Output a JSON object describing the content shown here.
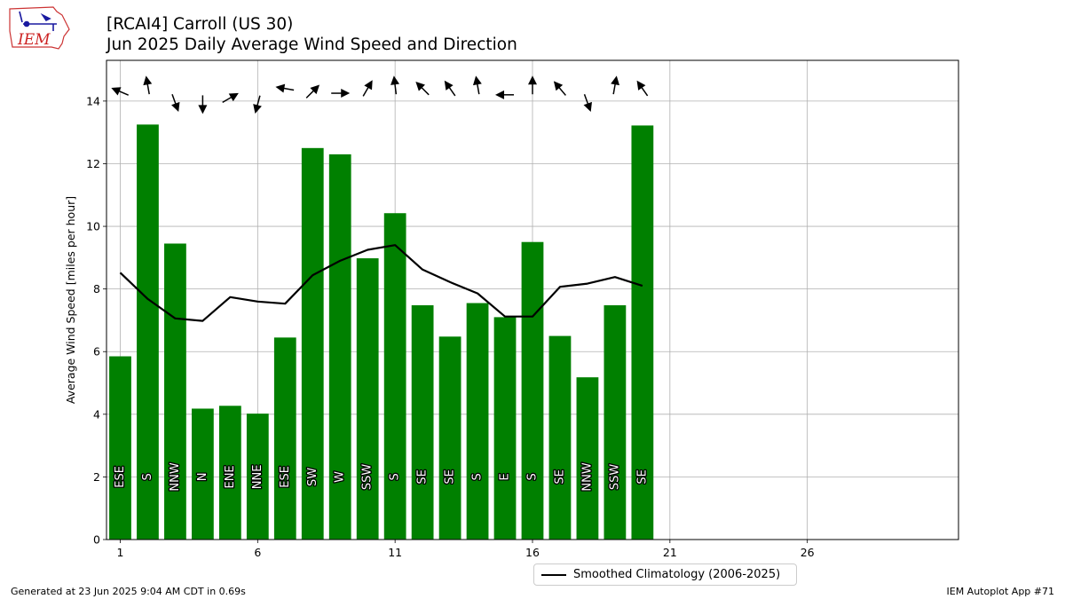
{
  "header": {
    "logo_text": "IEM",
    "title_line1": "[RCAI4] Carroll (US 30)",
    "title_line2": "Jun 2025 Daily Average Wind Speed and Direction"
  },
  "chart_data": {
    "type": "bar",
    "ylabel": "Average Wind Speed [miles per hour]",
    "xlim": [
      0.5,
      31.5
    ],
    "ylim": [
      0,
      15.3
    ],
    "x_ticks": [
      1,
      6,
      11,
      16,
      21,
      26
    ],
    "y_ticks": [
      0,
      2,
      4,
      6,
      8,
      10,
      12,
      14
    ],
    "grid": true,
    "bar_color": "#008000",
    "days": [
      1,
      2,
      3,
      4,
      5,
      6,
      7,
      8,
      9,
      10,
      11,
      12,
      13,
      14,
      15,
      16,
      17,
      18,
      19,
      20
    ],
    "speed": [
      5.85,
      13.25,
      9.45,
      4.18,
      4.27,
      4.02,
      6.45,
      12.5,
      12.3,
      8.98,
      10.42,
      7.48,
      6.48,
      7.55,
      7.1,
      9.5,
      6.5,
      5.18,
      7.48,
      13.22
    ],
    "direction": [
      "ESE",
      "S",
      "NNW",
      "N",
      "ENE",
      "NNE",
      "ESE",
      "SW",
      "W",
      "SSW",
      "S",
      "SE",
      "SE",
      "S",
      "E",
      "S",
      "SE",
      "NNW",
      "SSW",
      "SE"
    ],
    "arrow_y": [
      14.3,
      14.5,
      13.95,
      13.9,
      14.1,
      13.9,
      14.4,
      14.3,
      14.25,
      14.4,
      14.5,
      14.4,
      14.4,
      14.5,
      14.2,
      14.5,
      14.4,
      13.95,
      14.5,
      14.4
    ],
    "arrow_angle_deg": [
      -157,
      -100,
      70,
      90,
      -30,
      105,
      -170,
      -45,
      0,
      -60,
      -97,
      -135,
      -125,
      -100,
      180,
      -90,
      -130,
      70,
      -80,
      -125
    ],
    "series": [
      {
        "name": "Smoothed Climatology (2006-2025)",
        "color": "#000000",
        "x": [
          1,
          2,
          3,
          4,
          5,
          6,
          7,
          8,
          9,
          10,
          11,
          12,
          13,
          14,
          15,
          16,
          17,
          18,
          19,
          20
        ],
        "values": [
          8.52,
          7.68,
          7.06,
          6.98,
          7.74,
          7.6,
          7.53,
          8.44,
          8.9,
          9.25,
          9.4,
          8.62,
          8.22,
          7.86,
          7.12,
          7.12,
          8.07,
          8.17,
          8.38,
          8.1
        ]
      }
    ]
  },
  "footer": {
    "generated": "Generated at 23 Jun 2025 9:04 AM CDT in 0.69s",
    "app": "IEM Autoplot App #71"
  }
}
